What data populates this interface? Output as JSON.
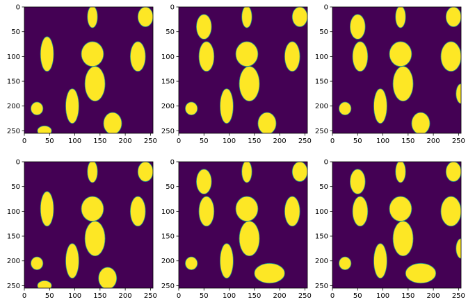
{
  "figure": {
    "background": "#ffffff"
  },
  "colors": {
    "background": "#440154",
    "foreground": "#fde725",
    "edge": "#21918c"
  },
  "axes_common": {
    "xticks": [
      0,
      50,
      100,
      150,
      200,
      250
    ],
    "yticks": [
      0,
      50,
      100,
      150,
      200,
      250
    ],
    "xlim": [
      0,
      255
    ],
    "ylim": [
      255,
      0
    ]
  },
  "chart_data": [
    {
      "type": "heatmap",
      "panel": 1,
      "title": "",
      "xlabel": "",
      "ylabel": "",
      "xlim": [
        0,
        255
      ],
      "ylim": [
        255,
        0
      ],
      "grid": false,
      "legend": "none",
      "values_range": [
        0,
        1
      ],
      "foreground_regions": [
        {
          "shape": "ellipse",
          "cx": 135,
          "cy": 20,
          "rx": 10,
          "ry": 22
        },
        {
          "shape": "ellipse",
          "cx": 240,
          "cy": 20,
          "rx": 15,
          "ry": 20
        },
        {
          "shape": "ellipse",
          "cx": 45,
          "cy": 95,
          "rx": 13,
          "ry": 35
        },
        {
          "shape": "ellipse",
          "cx": 135,
          "cy": 95,
          "rx": 22,
          "ry": 25
        },
        {
          "shape": "ellipse",
          "cx": 140,
          "cy": 155,
          "rx": 20,
          "ry": 35
        },
        {
          "shape": "ellipse",
          "cx": 225,
          "cy": 100,
          "rx": 15,
          "ry": 30
        },
        {
          "shape": "ellipse",
          "cx": 25,
          "cy": 205,
          "rx": 12,
          "ry": 13
        },
        {
          "shape": "ellipse",
          "cx": 95,
          "cy": 200,
          "rx": 13,
          "ry": 35
        },
        {
          "shape": "ellipse",
          "cx": 175,
          "cy": 235,
          "rx": 18,
          "ry": 22
        },
        {
          "shape": "ellipse",
          "cx": 40,
          "cy": 250,
          "rx": 14,
          "ry": 10
        }
      ]
    },
    {
      "type": "heatmap",
      "panel": 2,
      "title": "",
      "xlabel": "",
      "ylabel": "",
      "xlim": [
        0,
        255
      ],
      "ylim": [
        255,
        0
      ],
      "grid": false,
      "legend": "none",
      "values_range": [
        0,
        1
      ],
      "foreground_regions": [
        {
          "shape": "ellipse",
          "cx": 135,
          "cy": 20,
          "rx": 10,
          "ry": 22
        },
        {
          "shape": "ellipse",
          "cx": 240,
          "cy": 20,
          "rx": 15,
          "ry": 20
        },
        {
          "shape": "ellipse",
          "cx": 50,
          "cy": 40,
          "rx": 15,
          "ry": 25
        },
        {
          "shape": "ellipse",
          "cx": 55,
          "cy": 100,
          "rx": 15,
          "ry": 30
        },
        {
          "shape": "ellipse",
          "cx": 135,
          "cy": 95,
          "rx": 22,
          "ry": 25
        },
        {
          "shape": "ellipse",
          "cx": 140,
          "cy": 155,
          "rx": 20,
          "ry": 35
        },
        {
          "shape": "ellipse",
          "cx": 225,
          "cy": 100,
          "rx": 15,
          "ry": 30
        },
        {
          "shape": "ellipse",
          "cx": 25,
          "cy": 205,
          "rx": 12,
          "ry": 13
        },
        {
          "shape": "ellipse",
          "cx": 95,
          "cy": 200,
          "rx": 13,
          "ry": 35
        },
        {
          "shape": "ellipse",
          "cx": 175,
          "cy": 235,
          "rx": 18,
          "ry": 22
        }
      ]
    },
    {
      "type": "heatmap",
      "panel": 3,
      "title": "",
      "xlabel": "",
      "ylabel": "",
      "xlim": [
        0,
        255
      ],
      "ylim": [
        255,
        0
      ],
      "grid": false,
      "legend": "none",
      "values_range": [
        0,
        1
      ],
      "foreground_regions": [
        {
          "shape": "ellipse",
          "cx": 135,
          "cy": 20,
          "rx": 10,
          "ry": 22
        },
        {
          "shape": "ellipse",
          "cx": 240,
          "cy": 20,
          "rx": 15,
          "ry": 20
        },
        {
          "shape": "ellipse",
          "cx": 50,
          "cy": 40,
          "rx": 15,
          "ry": 25
        },
        {
          "shape": "ellipse",
          "cx": 55,
          "cy": 100,
          "rx": 15,
          "ry": 30
        },
        {
          "shape": "ellipse",
          "cx": 135,
          "cy": 95,
          "rx": 22,
          "ry": 25
        },
        {
          "shape": "ellipse",
          "cx": 140,
          "cy": 155,
          "rx": 20,
          "ry": 35
        },
        {
          "shape": "ellipse",
          "cx": 235,
          "cy": 100,
          "rx": 20,
          "ry": 30
        },
        {
          "shape": "ellipse",
          "cx": 25,
          "cy": 205,
          "rx": 12,
          "ry": 13
        },
        {
          "shape": "ellipse",
          "cx": 95,
          "cy": 200,
          "rx": 13,
          "ry": 35
        },
        {
          "shape": "ellipse",
          "cx": 175,
          "cy": 235,
          "rx": 18,
          "ry": 22
        },
        {
          "shape": "ellipse",
          "cx": 255,
          "cy": 175,
          "rx": 10,
          "ry": 20
        }
      ]
    },
    {
      "type": "heatmap",
      "panel": 4,
      "title": "",
      "xlabel": "",
      "ylabel": "",
      "xlim": [
        0,
        255
      ],
      "ylim": [
        255,
        0
      ],
      "grid": false,
      "legend": "none",
      "values_range": [
        0,
        1
      ],
      "foreground_regions": [
        {
          "shape": "ellipse",
          "cx": 135,
          "cy": 20,
          "rx": 10,
          "ry": 22
        },
        {
          "shape": "ellipse",
          "cx": 240,
          "cy": 20,
          "rx": 15,
          "ry": 20
        },
        {
          "shape": "ellipse",
          "cx": 45,
          "cy": 95,
          "rx": 13,
          "ry": 35
        },
        {
          "shape": "ellipse",
          "cx": 135,
          "cy": 95,
          "rx": 22,
          "ry": 25
        },
        {
          "shape": "ellipse",
          "cx": 140,
          "cy": 155,
          "rx": 20,
          "ry": 35
        },
        {
          "shape": "ellipse",
          "cx": 225,
          "cy": 100,
          "rx": 15,
          "ry": 30
        },
        {
          "shape": "ellipse",
          "cx": 25,
          "cy": 205,
          "rx": 12,
          "ry": 13
        },
        {
          "shape": "ellipse",
          "cx": 95,
          "cy": 200,
          "rx": 13,
          "ry": 35
        },
        {
          "shape": "ellipse",
          "cx": 165,
          "cy": 235,
          "rx": 18,
          "ry": 22
        },
        {
          "shape": "ellipse",
          "cx": 40,
          "cy": 250,
          "rx": 14,
          "ry": 10
        }
      ]
    },
    {
      "type": "heatmap",
      "panel": 5,
      "title": "",
      "xlabel": "",
      "ylabel": "",
      "xlim": [
        0,
        255
      ],
      "ylim": [
        255,
        0
      ],
      "grid": false,
      "legend": "none",
      "values_range": [
        0,
        1
      ],
      "foreground_regions": [
        {
          "shape": "ellipse",
          "cx": 135,
          "cy": 20,
          "rx": 10,
          "ry": 22
        },
        {
          "shape": "ellipse",
          "cx": 240,
          "cy": 20,
          "rx": 15,
          "ry": 20
        },
        {
          "shape": "ellipse",
          "cx": 50,
          "cy": 40,
          "rx": 15,
          "ry": 25
        },
        {
          "shape": "ellipse",
          "cx": 55,
          "cy": 100,
          "rx": 15,
          "ry": 30
        },
        {
          "shape": "ellipse",
          "cx": 135,
          "cy": 95,
          "rx": 22,
          "ry": 25
        },
        {
          "shape": "ellipse",
          "cx": 140,
          "cy": 155,
          "rx": 20,
          "ry": 35
        },
        {
          "shape": "ellipse",
          "cx": 225,
          "cy": 100,
          "rx": 15,
          "ry": 30
        },
        {
          "shape": "ellipse",
          "cx": 25,
          "cy": 205,
          "rx": 12,
          "ry": 13
        },
        {
          "shape": "ellipse",
          "cx": 95,
          "cy": 200,
          "rx": 13,
          "ry": 35
        },
        {
          "shape": "ellipse",
          "cx": 180,
          "cy": 225,
          "rx": 30,
          "ry": 20
        }
      ]
    },
    {
      "type": "heatmap",
      "panel": 6,
      "title": "",
      "xlabel": "",
      "ylabel": "",
      "xlim": [
        0,
        255
      ],
      "ylim": [
        255,
        0
      ],
      "grid": false,
      "legend": "none",
      "values_range": [
        0,
        1
      ],
      "foreground_regions": [
        {
          "shape": "ellipse",
          "cx": 135,
          "cy": 20,
          "rx": 10,
          "ry": 22
        },
        {
          "shape": "ellipse",
          "cx": 240,
          "cy": 20,
          "rx": 15,
          "ry": 20
        },
        {
          "shape": "ellipse",
          "cx": 50,
          "cy": 40,
          "rx": 15,
          "ry": 25
        },
        {
          "shape": "ellipse",
          "cx": 55,
          "cy": 100,
          "rx": 15,
          "ry": 30
        },
        {
          "shape": "ellipse",
          "cx": 135,
          "cy": 95,
          "rx": 22,
          "ry": 25
        },
        {
          "shape": "ellipse",
          "cx": 140,
          "cy": 155,
          "rx": 20,
          "ry": 35
        },
        {
          "shape": "ellipse",
          "cx": 235,
          "cy": 100,
          "rx": 20,
          "ry": 30
        },
        {
          "shape": "ellipse",
          "cx": 25,
          "cy": 205,
          "rx": 12,
          "ry": 13
        },
        {
          "shape": "ellipse",
          "cx": 95,
          "cy": 200,
          "rx": 13,
          "ry": 35
        },
        {
          "shape": "ellipse",
          "cx": 175,
          "cy": 225,
          "rx": 30,
          "ry": 20
        },
        {
          "shape": "ellipse",
          "cx": 255,
          "cy": 175,
          "rx": 10,
          "ry": 20
        }
      ]
    }
  ]
}
